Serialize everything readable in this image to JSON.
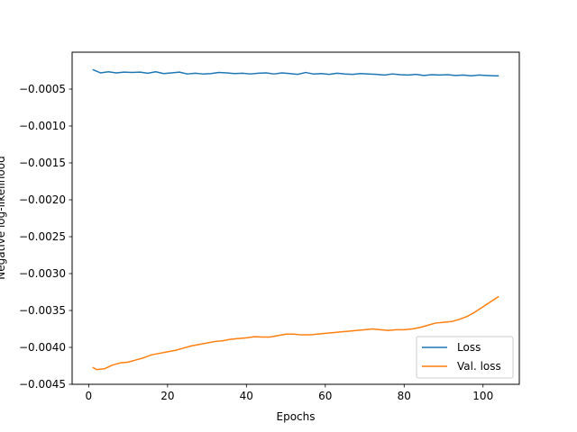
{
  "chart_data": {
    "type": "line",
    "xlabel": "Epochs",
    "ylabel": "Negative log-likelihood",
    "xlim": [
      -4.2,
      109.2
    ],
    "ylim": [
      -0.0045,
      -0.0
    ],
    "xticks": [
      0,
      20,
      40,
      60,
      80,
      100
    ],
    "yticks": [
      -0.0045,
      -0.004,
      -0.0035,
      -0.003,
      -0.0025,
      -0.002,
      -0.0015,
      -0.001,
      -0.0005
    ],
    "ytick_labels": [
      "−0.0045",
      "−0.0040",
      "−0.0035",
      "−0.0030",
      "−0.0025",
      "−0.0020",
      "−0.0015",
      "−0.0010",
      "−0.0005"
    ],
    "legend_position": "lower-right",
    "series": [
      {
        "name": "Loss",
        "color": "#1f77b4",
        "x": [
          1,
          3,
          5,
          7,
          9,
          11,
          13,
          15,
          17,
          19,
          21,
          23,
          25,
          27,
          29,
          31,
          33,
          35,
          37,
          39,
          41,
          43,
          45,
          47,
          49,
          51,
          53,
          55,
          57,
          59,
          61,
          63,
          65,
          67,
          69,
          71,
          73,
          75,
          77,
          79,
          81,
          83,
          85,
          87,
          89,
          91,
          93,
          95,
          97,
          99,
          101,
          103,
          104
        ],
        "y": [
          -0.000235,
          -0.00028,
          -0.000265,
          -0.00028,
          -0.00027,
          -0.000275,
          -0.00027,
          -0.000285,
          -0.000265,
          -0.00029,
          -0.00028,
          -0.00027,
          -0.000295,
          -0.000285,
          -0.000295,
          -0.00029,
          -0.000275,
          -0.00028,
          -0.00029,
          -0.000285,
          -0.000295,
          -0.000285,
          -0.00028,
          -0.000295,
          -0.00028,
          -0.00029,
          -0.0003,
          -0.000275,
          -0.000295,
          -0.00029,
          -0.0003,
          -0.000285,
          -0.000295,
          -0.0003,
          -0.00029,
          -0.000295,
          -0.0003,
          -0.00031,
          -0.000295,
          -0.000305,
          -0.00031,
          -0.0003,
          -0.000315,
          -0.000305,
          -0.00031,
          -0.000305,
          -0.000315,
          -0.00031,
          -0.00032,
          -0.00031,
          -0.000315,
          -0.00032,
          -0.00032
        ]
      },
      {
        "name": "Val. loss",
        "color": "#ff7f0e",
        "x": [
          1,
          2,
          4,
          6,
          8,
          10,
          12,
          14,
          16,
          18,
          20,
          22,
          24,
          26,
          28,
          30,
          32,
          34,
          36,
          38,
          40,
          42,
          44,
          46,
          48,
          50,
          52,
          54,
          56,
          58,
          60,
          62,
          64,
          66,
          68,
          70,
          72,
          74,
          76,
          78,
          80,
          82,
          84,
          86,
          88,
          90,
          92,
          94,
          96,
          98,
          100,
          102,
          104
        ],
        "y": [
          -0.00427,
          -0.0043,
          -0.00429,
          -0.00424,
          -0.00421,
          -0.0042,
          -0.00417,
          -0.00414,
          -0.0041,
          -0.00408,
          -0.00406,
          -0.00404,
          -0.00401,
          -0.00398,
          -0.00396,
          -0.00394,
          -0.00392,
          -0.00391,
          -0.00389,
          -0.00388,
          -0.00387,
          -0.003855,
          -0.00386,
          -0.00386,
          -0.00384,
          -0.00382,
          -0.00382,
          -0.00383,
          -0.00383,
          -0.00382,
          -0.00381,
          -0.0038,
          -0.00379,
          -0.00378,
          -0.00377,
          -0.00376,
          -0.00375,
          -0.00376,
          -0.00377,
          -0.00376,
          -0.00376,
          -0.00375,
          -0.00373,
          -0.0037,
          -0.00367,
          -0.00366,
          -0.00365,
          -0.00362,
          -0.00358,
          -0.00352,
          -0.00345,
          -0.00338,
          -0.00331
        ]
      }
    ]
  }
}
